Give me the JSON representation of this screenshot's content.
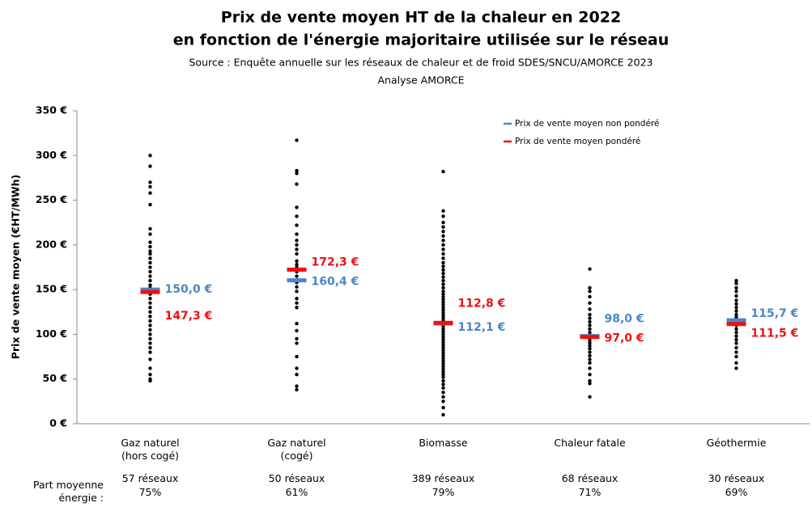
{
  "chart_data": {
    "type": "strip",
    "title": "Prix de vente moyen HT de la chaleur en 2022",
    "subtitle": "en fonction de l'énergie majoritaire utilisée sur le réseau",
    "source": "Source : Enquête annuelle sur les réseaux de chaleur et de froid SDES/SNCU/AMORCE 2023",
    "analysis": "Analyse AMORCE",
    "ylabel": "Prix de vente moyen (€HT/MWh)",
    "categories": [
      "Gaz naturel (hors cogé)",
      "Gaz naturel (cogé)",
      "Biomasse",
      "Chaleur fatale",
      "Géothermie"
    ],
    "share_label": "Part moyenne énergie :",
    "network_counts": [
      "57 réseaux",
      "50 réseaux",
      "389 réseaux",
      "68 réseaux",
      "30 réseaux"
    ],
    "energy_shares": [
      "75%",
      "61%",
      "79%",
      "71%",
      "69%"
    ],
    "ylim": [
      0,
      350
    ],
    "yticks": [
      {
        "value": 0,
        "label": "0 €"
      },
      {
        "value": 50,
        "label": "50 €"
      },
      {
        "value": 100,
        "label": "100 €"
      },
      {
        "value": 150,
        "label": "150 €"
      },
      {
        "value": 200,
        "label": "200 €"
      },
      {
        "value": 250,
        "label": "250 €"
      },
      {
        "value": 300,
        "label": "300 €"
      },
      {
        "value": 350,
        "label": "350 €"
      }
    ],
    "grid": false,
    "point_color": "#000000",
    "points": [
      [
        300,
        288,
        270,
        265,
        258,
        245,
        218,
        212,
        203,
        198,
        193,
        190,
        185,
        180,
        175,
        170,
        165,
        160,
        155,
        152,
        148,
        145,
        140,
        135,
        130,
        125,
        120,
        115,
        110,
        105,
        100,
        95,
        90,
        85,
        80,
        72,
        62,
        55,
        50,
        48
      ],
      [
        317,
        283,
        280,
        268,
        242,
        232,
        222,
        212,
        205,
        200,
        195,
        190,
        182,
        178,
        175,
        170,
        165,
        158,
        153,
        148,
        140,
        135,
        130,
        112,
        104,
        95,
        90,
        75,
        62,
        55,
        42,
        38
      ],
      [
        282,
        238,
        232,
        225,
        220,
        215,
        210,
        205,
        200,
        195,
        190,
        185,
        180,
        176,
        172,
        168,
        164,
        160,
        156,
        152,
        148,
        145,
        142,
        139,
        136,
        133,
        130,
        127,
        124,
        121,
        118,
        115,
        112,
        109,
        106,
        103,
        100,
        97,
        94,
        91,
        88,
        85,
        82,
        79,
        76,
        73,
        70,
        67,
        64,
        61,
        58,
        55,
        52,
        48,
        44,
        40,
        35,
        30,
        25,
        18,
        10
      ],
      [
        173,
        152,
        148,
        142,
        135,
        128,
        122,
        118,
        114,
        110,
        106,
        102,
        99,
        96,
        93,
        90,
        87,
        84,
        80,
        76,
        72,
        68,
        62,
        55,
        48,
        45,
        30
      ],
      [
        160,
        157,
        152,
        148,
        143,
        138,
        134,
        130,
        126,
        122,
        119,
        116,
        113,
        110,
        106,
        102,
        98,
        94,
        90,
        85,
        80,
        75,
        68,
        62
      ]
    ],
    "series": [
      {
        "name": "Prix de vente moyen non pondéré",
        "color": "#4a86c8",
        "values": [
          150.0,
          160.4,
          112.1,
          98.0,
          115.7
        ],
        "value_labels": [
          "150,0 €",
          "160,4 €",
          "112,1 €",
          "98,0 €",
          "115,7 €"
        ]
      },
      {
        "name": "Prix de vente moyen pondéré",
        "color": "#ee1111",
        "values": [
          147.3,
          172.3,
          112.8,
          97.0,
          111.5
        ],
        "value_labels": [
          "147,3 €",
          "172,3 €",
          "112,8 €",
          "97,0 €",
          "111,5 €"
        ]
      }
    ]
  }
}
